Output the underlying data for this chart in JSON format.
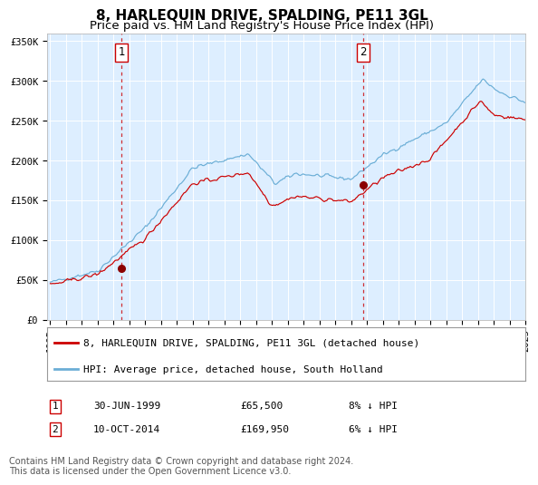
{
  "title": "8, HARLEQUIN DRIVE, SPALDING, PE11 3GL",
  "subtitle": "Price paid vs. HM Land Registry's House Price Index (HPI)",
  "hpi_line_color": "#6baed6",
  "price_line_color": "#cc0000",
  "dashed_line_color": "#cc0000",
  "plot_bg_color": "#ddeeff",
  "ylim": [
    0,
    360000
  ],
  "yticks": [
    0,
    50000,
    100000,
    150000,
    200000,
    250000,
    300000,
    350000
  ],
  "ytick_labels": [
    "£0",
    "£50K",
    "£100K",
    "£150K",
    "£200K",
    "£250K",
    "£300K",
    "£350K"
  ],
  "xstart_year": 1995,
  "xend_year": 2025,
  "sale1_year": 1999.5,
  "sale1_price": 65500,
  "sale2_year": 2014.78,
  "sale2_price": 169950,
  "legend_label1": "8, HARLEQUIN DRIVE, SPALDING, PE11 3GL (detached house)",
  "legend_label2": "HPI: Average price, detached house, South Holland",
  "ann1_label": "1",
  "ann2_label": "2",
  "ann1_date": "30-JUN-1999",
  "ann1_price": "£65,500",
  "ann1_hpi": "8% ↓ HPI",
  "ann2_date": "10-OCT-2014",
  "ann2_price": "£169,950",
  "ann2_hpi": "6% ↓ HPI",
  "footer1": "Contains HM Land Registry data © Crown copyright and database right 2024.",
  "footer2": "This data is licensed under the Open Government Licence v3.0.",
  "title_fontsize": 11,
  "subtitle_fontsize": 9.5,
  "tick_fontsize": 7.5,
  "legend_fontsize": 8,
  "ann_fontsize": 8,
  "footer_fontsize": 7
}
